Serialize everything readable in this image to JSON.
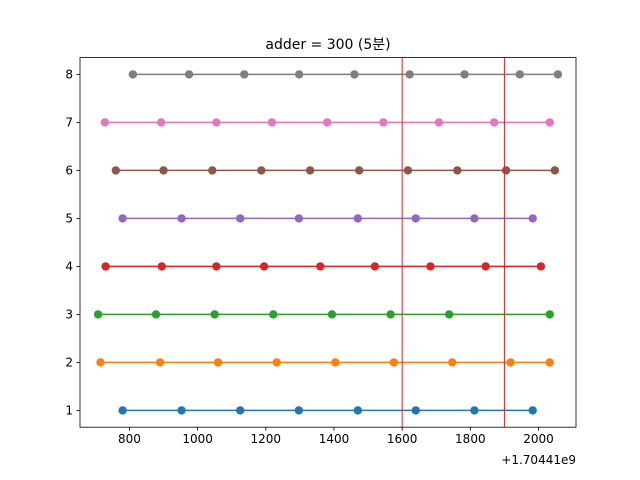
{
  "chart_data": {
    "type": "line",
    "title": "adder = 300 (5분)",
    "xlabel": "",
    "ylabel": "",
    "x_offset_label": "+1.70441e9",
    "xlim": [
      655,
      2110
    ],
    "ylim": [
      0.65,
      8.35
    ],
    "x_ticks": [
      800,
      1000,
      1200,
      1400,
      1600,
      1800,
      2000
    ],
    "y_ticks": [
      1,
      2,
      3,
      4,
      5,
      6,
      7,
      8
    ],
    "grid": false,
    "vlines": [
      {
        "x": 1600,
        "color": "#d62728"
      },
      {
        "x": 1900,
        "color": "#d62728"
      }
    ],
    "series": [
      {
        "color": "#1f77b4",
        "y": 1,
        "x": [
          780,
          953,
          1125,
          1297,
          1470,
          1640,
          1812,
          1983
        ]
      },
      {
        "color": "#ff7f0e",
        "y": 2,
        "x": [
          715,
          890,
          1060,
          1232,
          1404,
          1576,
          1747,
          1918,
          2033
        ]
      },
      {
        "color": "#2ca02c",
        "y": 3,
        "x": [
          708,
          878,
          1050,
          1222,
          1394,
          1566,
          1738,
          2033
        ]
      },
      {
        "color": "#d62728",
        "y": 4,
        "x": [
          730,
          895,
          1055,
          1195,
          1360,
          1520,
          1683,
          1845,
          2007
        ]
      },
      {
        "color": "#9467bd",
        "y": 5,
        "x": [
          780,
          953,
          1125,
          1297,
          1470,
          1640,
          1812,
          1983
        ]
      },
      {
        "color": "#8c564b",
        "y": 6,
        "x": [
          760,
          900,
          1043,
          1187,
          1330,
          1474,
          1617,
          1762,
          1905,
          2048
        ]
      },
      {
        "color": "#e377c2",
        "y": 7,
        "x": [
          728,
          893,
          1055,
          1218,
          1380,
          1545,
          1708,
          1870,
          2033
        ]
      },
      {
        "color": "#7f7f7f",
        "y": 8,
        "x": [
          810,
          975,
          1137,
          1298,
          1460,
          1622,
          1783,
          1945,
          2057
        ]
      }
    ]
  }
}
